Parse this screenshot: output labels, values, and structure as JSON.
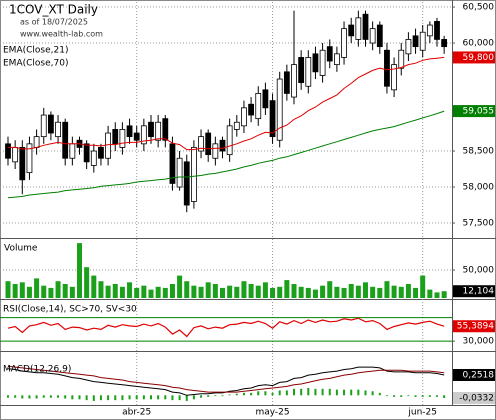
{
  "chart_data": [
    {
      "type": "candlestick",
      "title": "1COV_XT Daily",
      "subtitle": "as of 18/07/2025",
      "source": "www.wealth-lab.com",
      "categories": [
        null,
        null,
        null,
        null,
        null,
        null,
        null,
        null,
        null,
        null,
        null,
        null,
        null,
        null,
        null,
        null,
        null,
        null,
        "abr-25",
        null,
        null,
        null,
        null,
        null,
        null,
        null,
        null,
        null,
        null,
        null,
        null,
        null,
        null,
        null,
        null,
        null,
        null,
        "may-25",
        null,
        null,
        null,
        null,
        null,
        null,
        null,
        null,
        null,
        null,
        null,
        null,
        null,
        null,
        null,
        null,
        null,
        null,
        null,
        null,
        "jun-25",
        null,
        null,
        null
      ],
      "open": [
        58.6,
        58.35,
        58.55,
        58.2,
        58.55,
        58.7,
        59.0,
        58.7,
        58.9,
        58.4,
        58.65,
        58.6,
        58.3,
        58.55,
        58.4,
        58.8,
        58.55,
        58.85,
        58.75,
        58.6,
        58.9,
        58.65,
        58.95,
        58.6,
        58.0,
        58.35,
        57.8,
        58.5,
        58.75,
        58.4,
        58.65,
        58.45,
        58.8,
        58.85,
        59.15,
        58.95,
        59.35,
        59.2,
        58.65,
        59.6,
        59.25,
        59.8,
        59.4,
        59.85,
        59.55,
        59.95,
        59.7,
        59.8,
        60.25,
        60.05,
        60.4,
        60.0,
        60.25,
        59.9,
        59.35,
        59.65,
        59.85,
        60.1,
        59.9,
        60.1,
        60.3,
        60.05
      ],
      "high": [
        58.7,
        58.65,
        58.65,
        58.7,
        58.8,
        59.1,
        59.05,
        59.0,
        58.95,
        58.7,
        58.7,
        58.65,
        58.6,
        58.6,
        58.85,
        58.9,
        58.9,
        58.95,
        58.85,
        58.95,
        59.0,
        59.0,
        59.0,
        58.7,
        58.5,
        58.45,
        58.65,
        58.8,
        58.8,
        58.7,
        58.7,
        58.95,
        59.0,
        59.2,
        59.25,
        59.4,
        59.45,
        59.3,
        59.6,
        59.7,
        60.45,
        59.9,
        59.9,
        59.95,
        60.0,
        60.05,
        59.95,
        60.3,
        60.35,
        60.45,
        60.45,
        60.3,
        60.3,
        60.0,
        59.8,
        60.0,
        60.15,
        60.2,
        60.25,
        60.3,
        60.35,
        60.1
      ],
      "low": [
        58.3,
        58.25,
        57.9,
        58.1,
        58.45,
        58.6,
        58.65,
        58.6,
        58.3,
        58.3,
        58.45,
        58.25,
        58.2,
        58.3,
        58.3,
        58.5,
        58.45,
        58.6,
        58.55,
        58.5,
        58.6,
        58.55,
        58.55,
        57.95,
        57.95,
        57.65,
        57.7,
        58.4,
        58.35,
        58.3,
        58.4,
        58.35,
        58.7,
        58.75,
        58.9,
        58.85,
        59.0,
        58.6,
        58.55,
        59.2,
        59.15,
        59.35,
        59.3,
        59.5,
        59.45,
        59.65,
        59.6,
        59.7,
        60.0,
        59.95,
        59.95,
        59.9,
        59.85,
        59.3,
        59.25,
        59.55,
        59.75,
        59.85,
        59.8,
        60.0,
        59.95,
        59.85
      ],
      "close": [
        58.4,
        58.55,
        58.1,
        58.6,
        58.7,
        59.0,
        58.75,
        58.9,
        58.4,
        58.6,
        58.55,
        58.35,
        58.5,
        58.4,
        58.75,
        58.6,
        58.8,
        58.7,
        58.65,
        58.85,
        58.7,
        58.9,
        58.65,
        58.05,
        58.4,
        57.75,
        58.55,
        58.7,
        58.45,
        58.6,
        58.5,
        58.85,
        58.9,
        59.1,
        59.0,
        59.3,
        59.1,
        58.7,
        59.5,
        59.3,
        59.7,
        59.45,
        59.8,
        59.6,
        59.9,
        59.75,
        59.85,
        60.2,
        60.1,
        60.35,
        60.05,
        60.2,
        59.95,
        59.4,
        59.7,
        59.9,
        60.05,
        59.95,
        60.15,
        60.25,
        60.05,
        59.95
      ],
      "series": [
        {
          "name": "EMA(Close,21)",
          "color": "#e00000",
          "last_label": "59,800",
          "values": [
            58.55,
            58.55,
            58.53,
            58.53,
            58.55,
            58.58,
            58.6,
            58.62,
            58.6,
            58.6,
            58.6,
            58.58,
            58.58,
            58.57,
            58.59,
            58.59,
            58.61,
            58.62,
            58.62,
            58.64,
            58.65,
            58.67,
            58.67,
            58.61,
            58.59,
            58.52,
            58.52,
            58.54,
            58.53,
            58.54,
            58.54,
            58.57,
            58.6,
            58.64,
            58.67,
            58.72,
            58.76,
            58.75,
            58.82,
            58.86,
            58.94,
            58.99,
            59.06,
            59.11,
            59.18,
            59.23,
            59.28,
            59.37,
            59.44,
            59.52,
            59.57,
            59.62,
            59.65,
            59.63,
            59.64,
            59.66,
            59.7,
            59.72,
            59.76,
            59.78,
            59.79,
            59.8
          ]
        },
        {
          "name": "EMA(Close,70)",
          "color": "#008000",
          "last_label": "59,055",
          "values": [
            57.85,
            57.86,
            57.87,
            57.89,
            57.9,
            57.91,
            57.92,
            57.93,
            57.95,
            57.96,
            57.97,
            57.98,
            57.99,
            58.01,
            58.02,
            58.03,
            58.04,
            58.05,
            58.07,
            58.08,
            58.09,
            58.1,
            58.11,
            58.13,
            58.14,
            58.14,
            58.15,
            58.16,
            58.18,
            58.19,
            58.21,
            58.23,
            58.25,
            58.28,
            58.3,
            58.33,
            58.35,
            58.37,
            58.4,
            58.42,
            58.45,
            58.48,
            58.51,
            58.54,
            58.57,
            58.6,
            58.63,
            58.66,
            58.69,
            58.72,
            58.75,
            58.78,
            58.8,
            58.82,
            58.84,
            58.87,
            58.9,
            58.93,
            58.96,
            58.99,
            59.02,
            59.055
          ]
        }
      ],
      "ylim": [
        57.32,
        60.57
      ],
      "yticks": [
        {
          "value": 57.5,
          "label": "57,500"
        },
        {
          "value": 58,
          "label": "58,000"
        },
        {
          "value": 58.5,
          "label": "58,500"
        },
        {
          "value": 60,
          "label": "60,000"
        },
        {
          "value": 60.5,
          "label": "60,500"
        }
      ],
      "grid": true
    },
    {
      "type": "bar",
      "title": "Volume",
      "color": "#1aa01a",
      "last_label": "12,104",
      "values": [
        30,
        25,
        28,
        20,
        35,
        22,
        18,
        30,
        25,
        20,
        98,
        55,
        40,
        30,
        22,
        25,
        20,
        28,
        18,
        22,
        15,
        20,
        18,
        25,
        40,
        30,
        22,
        20,
        28,
        25,
        18,
        22,
        20,
        30,
        25,
        22,
        28,
        18,
        20,
        32,
        25,
        20,
        18,
        15,
        22,
        30,
        20,
        18,
        25,
        22,
        28,
        20,
        18,
        30,
        22,
        20,
        25,
        18,
        40,
        15,
        10,
        12.104
      ],
      "ylim": [
        0,
        103.6
      ],
      "yticks": [
        {
          "value": 50,
          "label": "50,000"
        }
      ],
      "grid": true
    },
    {
      "type": "line",
      "title": "RSI(Close,14), SC>70, SV<30",
      "color": "#e00000",
      "last_label": "55,3894",
      "levels": [
        70,
        30
      ],
      "level_color": "#008000",
      "values": [
        52,
        55,
        45,
        56,
        58,
        62,
        57,
        60,
        50,
        54,
        53,
        49,
        52,
        50,
        57,
        54,
        58,
        56,
        55,
        59,
        56,
        60,
        54,
        42,
        49,
        38,
        53,
        56,
        51,
        54,
        52,
        58,
        59,
        62,
        60,
        64,
        60,
        52,
        63,
        59,
        65,
        60,
        66,
        62,
        66,
        63,
        64,
        68,
        66,
        69,
        63,
        65,
        60,
        50,
        55,
        58,
        61,
        59,
        62,
        64,
        59,
        55.3894
      ],
      "ylim": [
        15,
        100
      ],
      "yticks": [
        {
          "value": 30,
          "label": "30,000"
        }
      ],
      "grid": false
    },
    {
      "type": "macd",
      "title": "MACD(12,26,9)",
      "series": [
        {
          "style": "bar",
          "color": "#1aa01a",
          "last_label": "-0,0332",
          "values": [
            -0.03,
            -0.03,
            -0.04,
            -0.04,
            -0.04,
            -0.03,
            -0.03,
            -0.03,
            -0.04,
            -0.05,
            -0.05,
            -0.06,
            -0.07,
            -0.06,
            -0.06,
            -0.06,
            -0.06,
            -0.05,
            -0.05,
            -0.05,
            -0.05,
            -0.05,
            -0.05,
            -0.06,
            -0.06,
            -0.07,
            -0.05,
            -0.03,
            -0.02,
            -0.01,
            -0.01,
            0.01,
            0.02,
            0.03,
            0.03,
            0.05,
            0.05,
            0.03,
            0.06,
            0.06,
            0.08,
            0.08,
            0.09,
            0.08,
            0.08,
            0.08,
            0.07,
            0.07,
            0.07,
            0.07,
            0.06,
            0.05,
            0.03,
            -0.01,
            -0.02,
            -0.02,
            -0.01,
            -0.02,
            -0.02,
            -0.02,
            -0.02,
            -0.0332
          ]
        },
        {
          "style": "line",
          "color": "#000000",
          "last_label": "0,2518",
          "values": [
            0.33,
            0.32,
            0.3,
            0.29,
            0.28,
            0.28,
            0.27,
            0.26,
            0.24,
            0.22,
            0.21,
            0.19,
            0.17,
            0.16,
            0.15,
            0.14,
            0.13,
            0.12,
            0.11,
            0.1,
            0.09,
            0.08,
            0.07,
            0.04,
            0.03,
            0.0,
            0.01,
            0.02,
            0.02,
            0.03,
            0.03,
            0.05,
            0.06,
            0.08,
            0.09,
            0.12,
            0.13,
            0.12,
            0.16,
            0.17,
            0.21,
            0.22,
            0.25,
            0.26,
            0.28,
            0.29,
            0.3,
            0.32,
            0.33,
            0.35,
            0.35,
            0.35,
            0.34,
            0.3,
            0.29,
            0.29,
            0.29,
            0.28,
            0.28,
            0.28,
            0.27,
            0.2518
          ]
        },
        {
          "style": "line",
          "color": "#8b0000",
          "values": [
            0.36,
            0.35,
            0.34,
            0.33,
            0.32,
            0.31,
            0.3,
            0.29,
            0.28,
            0.27,
            0.26,
            0.25,
            0.24,
            0.22,
            0.21,
            0.2,
            0.19,
            0.17,
            0.16,
            0.15,
            0.14,
            0.13,
            0.12,
            0.1,
            0.09,
            0.07,
            0.06,
            0.05,
            0.04,
            0.04,
            0.04,
            0.04,
            0.04,
            0.05,
            0.06,
            0.07,
            0.08,
            0.09,
            0.1,
            0.11,
            0.13,
            0.14,
            0.16,
            0.18,
            0.2,
            0.21,
            0.23,
            0.25,
            0.26,
            0.28,
            0.29,
            0.3,
            0.31,
            0.31,
            0.31,
            0.31,
            0.3,
            0.3,
            0.3,
            0.3,
            0.29,
            0.28
          ]
        }
      ],
      "ylim": [
        -0.108,
        0.537
      ],
      "yticks": [],
      "grid": false
    }
  ]
}
